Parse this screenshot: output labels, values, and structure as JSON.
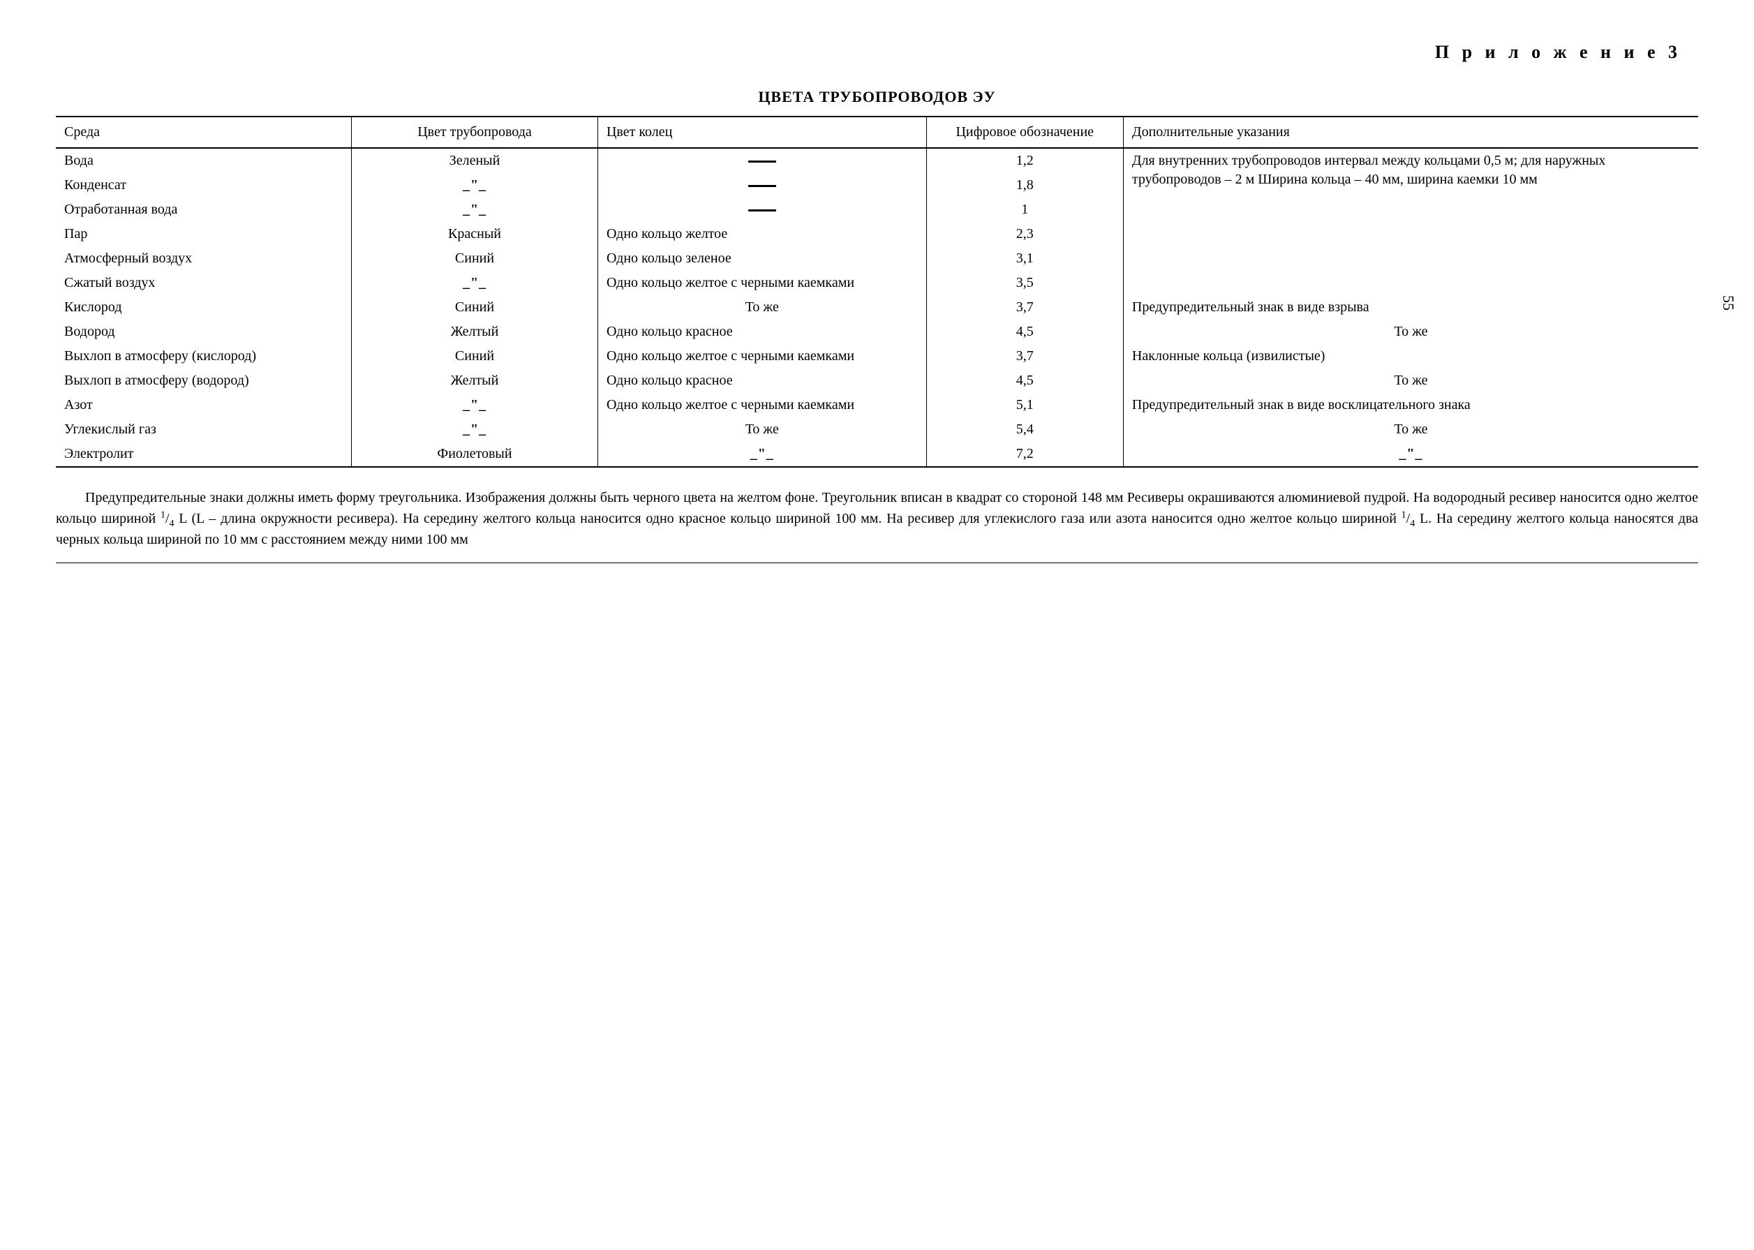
{
  "appendix_label": "П р и л о ж е н и е  3",
  "table_title": "ЦВЕТА ТРУБОПРОВОДОВ ЭУ",
  "page_number": "55",
  "columns": {
    "media": "Среда",
    "pipecolor": "Цвет трубопровода",
    "ringcolor": "Цвет колец",
    "code": "Цифровое обозначение",
    "notes": "Дополнительные указания"
  },
  "rows": [
    {
      "media": "Вода",
      "pipecolor": "Зеленый",
      "ringcolor": "—",
      "code": "1,2",
      "notes": "Для внутренних трубопроводов интервал между кольцами 0,5 м; для наружных трубопроводов – 2 м  Ширина кольца – 40 мм, ширина каемки 10 мм",
      "ring_dash": true,
      "notes_rowspan": 6
    },
    {
      "media": "Конденсат",
      "pipecolor": "_\"_",
      "ringcolor": "—",
      "code": "1,8",
      "ring_dash": true,
      "ditto_pipe": true
    },
    {
      "media": "Отработанная вода",
      "pipecolor": "_\"_",
      "ringcolor": "—",
      "code": "1",
      "ring_dash": true,
      "ditto_pipe": true
    },
    {
      "media": "Пар",
      "pipecolor": "Красный",
      "ringcolor": "Одно кольцо желтое",
      "code": "2,3"
    },
    {
      "media": "Атмосферный воздух",
      "pipecolor": "Синий",
      "ringcolor": "Одно кольцо зеленое",
      "code": "3,1"
    },
    {
      "media": "Сжатый воздух",
      "pipecolor": "_\"_",
      "ringcolor": "Одно кольцо желтое с черными каемками",
      "code": "3,5",
      "ditto_pipe": true
    },
    {
      "media": "Кислород",
      "pipecolor": "Синий",
      "ringcolor": "То же",
      "ringcolor_center": true,
      "code": "3,7",
      "notes": "Предупредительный знак в виде взрыва"
    },
    {
      "media": "Водород",
      "pipecolor": "Желтый",
      "ringcolor": "Одно кольцо красное",
      "code": "4,5",
      "notes": "То же",
      "notes_center": true
    },
    {
      "media": "Выхлоп в атмосферу (кислород)",
      "pipecolor": "Синий",
      "ringcolor": "Одно кольцо желтое с черными каемками",
      "code": "3,7",
      "notes": "Наклонные кольца (извилистые)"
    },
    {
      "media": "Выхлоп в атмосферу (водород)",
      "pipecolor": "Желтый",
      "ringcolor": "Одно кольцо красное",
      "code": "4,5",
      "notes": "То же",
      "notes_center": true
    },
    {
      "media": "Азот",
      "pipecolor": "_\"_",
      "ringcolor": "Одно кольцо желтое с черными каемками",
      "code": "5,1",
      "notes": "Предупредительный знак в виде восклицательного знака",
      "ditto_pipe": true
    },
    {
      "media": "Углекислый газ",
      "pipecolor": "_\"_",
      "ringcolor": "То же",
      "ringcolor_center": true,
      "code": "5,4",
      "notes": "То же",
      "notes_center": true,
      "ditto_pipe": true
    },
    {
      "media": "Электролит",
      "pipecolor": "Фиолетовый",
      "ringcolor": "_\"_",
      "ringcolor_center": true,
      "code": "7,2",
      "notes": "_\"_",
      "notes_center": true,
      "ditto_ring": true,
      "ditto_notes": true
    }
  ],
  "footnote_parts": {
    "a": "Предупредительные знаки должны иметь форму треугольника. Изображения должны быть черного цвета на желтом фоне. Треугольник вписан в квадрат со стороной 148 мм  Ресиверы окрашиваются алюминиевой пудрой. На водородный ресивер наносится одно желтое кольцо шириной ",
    "b": " L (L – длина окружности ресивера). На середину желтого кольца наносится одно красное кольцо шириной 100 мм. На ресивер для углекислого газа или азота наносится одно желтое кольцо шириной ",
    "c": " L. На середину желтого кольца наносятся два черных кольца шириной по 10 мм с расстоянием между ними 100 мм"
  },
  "fraction": {
    "num": "1",
    "den": "4"
  }
}
